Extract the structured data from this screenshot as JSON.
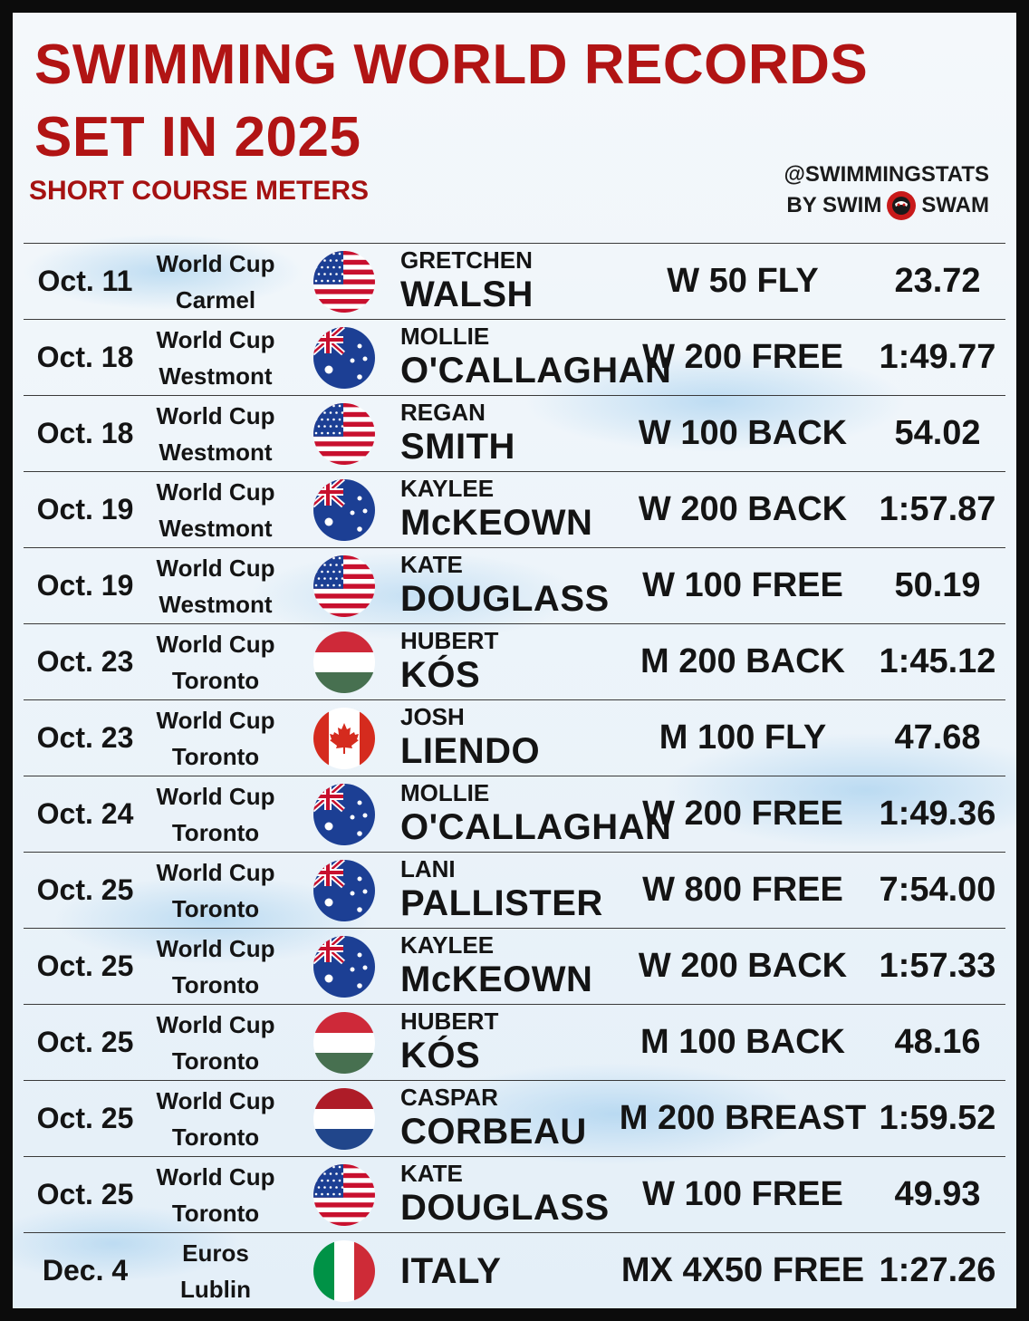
{
  "title_line1": "SWIMMING WORLD RECORDS",
  "title_line2": "SET IN 2025",
  "subtitle": "SHORT COURSE METERS",
  "credit_handle": "@SWIMMINGSTATS",
  "credit_by": "BY SWIM",
  "credit_brand": "SWAM",
  "records": [
    {
      "date": "Oct. 11",
      "meet1": "World Cup",
      "meet2": "Carmel",
      "flag": "usa-flag",
      "first": "GRETCHEN",
      "last": "WALSH",
      "event": "W 50 FLY",
      "time": "23.72"
    },
    {
      "date": "Oct. 18",
      "meet1": "World Cup",
      "meet2": "Westmont",
      "flag": "australia-flag",
      "first": "MOLLIE",
      "last": "O'CALLAGHAN",
      "event": "W 200 FREE",
      "time": "1:49.77"
    },
    {
      "date": "Oct. 18",
      "meet1": "World Cup",
      "meet2": "Westmont",
      "flag": "usa-flag",
      "first": "REGAN",
      "last": "SMITH",
      "event": "W 100 BACK",
      "time": "54.02"
    },
    {
      "date": "Oct. 19",
      "meet1": "World Cup",
      "meet2": "Westmont",
      "flag": "australia-flag",
      "first": "KAYLEE",
      "last": "McKEOWN",
      "event": "W 200 BACK",
      "time": "1:57.87"
    },
    {
      "date": "Oct. 19",
      "meet1": "World Cup",
      "meet2": "Westmont",
      "flag": "usa-flag",
      "first": "KATE",
      "last": "DOUGLASS",
      "event": "W 100 FREE",
      "time": "50.19"
    },
    {
      "date": "Oct. 23",
      "meet1": "World Cup",
      "meet2": "Toronto",
      "flag": "hungary-flag",
      "first": "HUBERT",
      "last": "KÓS",
      "event": "M 200 BACK",
      "time": "1:45.12"
    },
    {
      "date": "Oct. 23",
      "meet1": "World Cup",
      "meet2": "Toronto",
      "flag": "canada-flag",
      "first": "JOSH",
      "last": "LIENDO",
      "event": "M 100 FLY",
      "time": "47.68"
    },
    {
      "date": "Oct. 24",
      "meet1": "World Cup",
      "meet2": "Toronto",
      "flag": "australia-flag",
      "first": "MOLLIE",
      "last": "O'CALLAGHAN",
      "event": "W 200 FREE",
      "time": "1:49.36"
    },
    {
      "date": "Oct. 25",
      "meet1": "World Cup",
      "meet2": "Toronto",
      "flag": "australia-flag",
      "first": "LANI",
      "last": "PALLISTER",
      "event": "W 800 FREE",
      "time": "7:54.00"
    },
    {
      "date": "Oct. 25",
      "meet1": "World Cup",
      "meet2": "Toronto",
      "flag": "australia-flag",
      "first": "KAYLEE",
      "last": "McKEOWN",
      "event": "W 200 BACK",
      "time": "1:57.33"
    },
    {
      "date": "Oct. 25",
      "meet1": "World Cup",
      "meet2": "Toronto",
      "flag": "hungary-flag",
      "first": "HUBERT",
      "last": "KÓS",
      "event": "M 100 BACK",
      "time": "48.16"
    },
    {
      "date": "Oct. 25",
      "meet1": "World Cup",
      "meet2": "Toronto",
      "flag": "netherlands-flag",
      "first": "CASPAR",
      "last": "CORBEAU",
      "event": "M 200 BREAST",
      "time": "1:59.52"
    },
    {
      "date": "Oct. 25",
      "meet1": "World Cup",
      "meet2": "Toronto",
      "flag": "usa-flag",
      "first": "KATE",
      "last": "DOUGLASS",
      "event": "W 100 FREE",
      "time": "49.93"
    },
    {
      "date": "Dec. 4",
      "meet1": "Euros",
      "meet2": "Lublin",
      "flag": "italy-flag",
      "first": "",
      "last": "ITALY",
      "event": "MX 4X50 FREE",
      "time": "1:27.26"
    }
  ]
}
